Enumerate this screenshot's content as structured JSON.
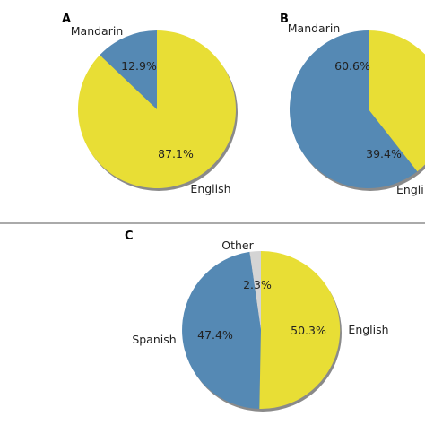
{
  "colors": {
    "yellow": "#e8de35",
    "blue": "#5589b4",
    "grey": "#d4d4d4",
    "shadow": "#8a8a8a",
    "divider": "#555555"
  },
  "chart_data": [
    {
      "panel": "A",
      "type": "pie",
      "slices": [
        {
          "label": "Mandarin",
          "value": 12.9,
          "pct_text": "12.9%",
          "color": "blue"
        },
        {
          "label": "English",
          "value": 87.1,
          "pct_text": "87.1%",
          "color": "yellow"
        }
      ]
    },
    {
      "panel": "B",
      "type": "pie",
      "slices": [
        {
          "label": "Mandarin",
          "value": 60.6,
          "pct_text": "60.6%",
          "color": "blue"
        },
        {
          "label": "Engli",
          "value": 39.4,
          "pct_text": "39.4%",
          "color": "yellow"
        }
      ]
    },
    {
      "panel": "C",
      "type": "pie",
      "slices": [
        {
          "label": "Other",
          "value": 2.3,
          "pct_text": "2.3%",
          "color": "grey"
        },
        {
          "label": "Spanish",
          "value": 47.4,
          "pct_text": "47.4%",
          "color": "blue"
        },
        {
          "label": "English",
          "value": 50.3,
          "pct_text": "50.3%",
          "color": "yellow"
        }
      ]
    }
  ]
}
